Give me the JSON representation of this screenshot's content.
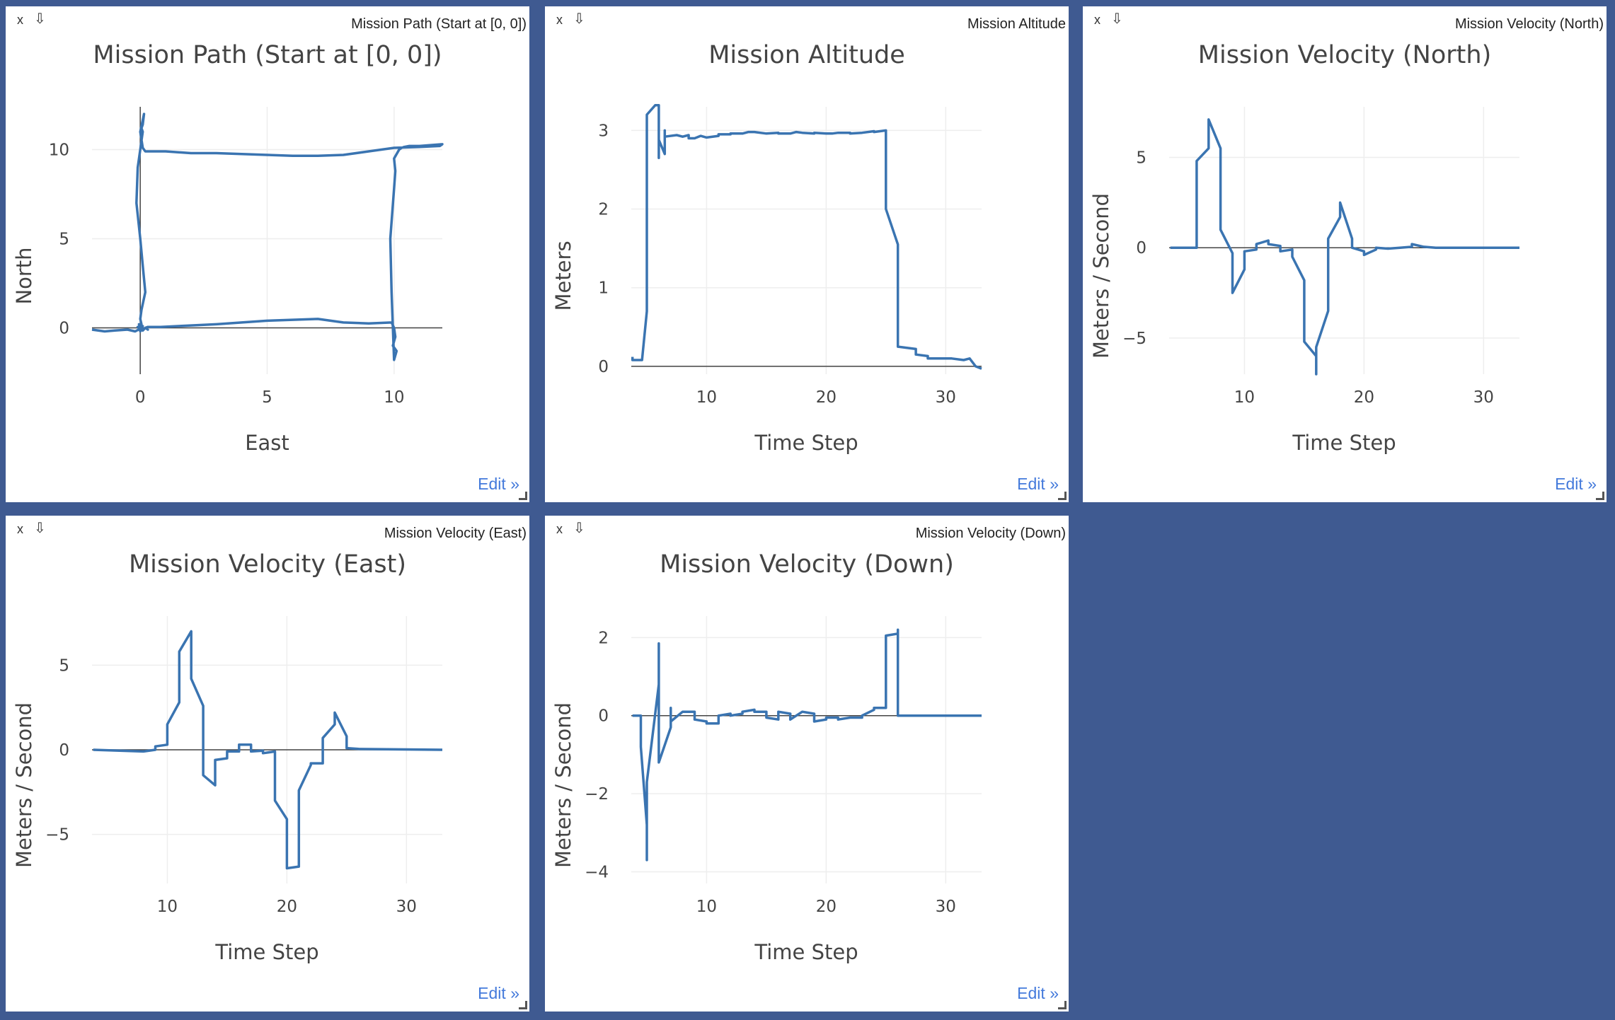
{
  "ui": {
    "close_label": "x",
    "popout_label": "⇩",
    "edit_label": "Edit »",
    "line_color": "#3a74b1",
    "grid_color": "#eeeeee",
    "zero_color": "#444444",
    "background": "#3f5a91"
  },
  "panels": [
    {
      "label": "Mission Path (Start at [0, 0])"
    },
    {
      "label": "Mission Altitude"
    },
    {
      "label": "Mission Velocity (North)"
    },
    {
      "label": "Mission Velocity (East)"
    },
    {
      "label": "Mission Velocity (Down)"
    }
  ],
  "chart_data": [
    {
      "type": "line",
      "title": "Mission Path (Start at [0, 0])",
      "xlabel": "East",
      "ylabel": "North",
      "xlim": [
        -1.9,
        11.9
      ],
      "ylim": [
        -2.6,
        12.4
      ],
      "xticks": [
        0,
        5,
        10
      ],
      "yticks": [
        0,
        5,
        10
      ],
      "grid": true,
      "zero_lines": {
        "x": true,
        "y": true
      },
      "series": [
        {
          "x": [
            -1.9,
            -1.4,
            -1.0,
            -0.5,
            -0.2,
            0.0,
            0.1,
            0.2,
            0.3,
            0.2,
            0.3,
            0.8,
            1.5,
            3.0,
            4.0,
            5.0,
            6.0,
            7.0,
            8.0,
            9.0,
            9.9,
            10.0,
            10.05,
            9.95,
            10.1,
            10.0,
            9.9,
            9.85,
            10.0,
            10.05,
            10.0,
            10.2,
            10.3,
            10.4,
            10.6,
            11.0,
            11.9,
            11.8,
            11.0,
            10.0,
            9.0,
            8.0,
            7.0,
            6.0,
            5.0,
            4.0,
            3.0,
            2.0,
            1.0,
            0.2,
            0.1,
            0.0,
            0.15,
            0.1,
            0.05,
            0.1,
            0.05,
            0.0,
            -0.1,
            -0.15,
            0.0,
            0.1,
            0.2,
            0.05,
            0.0,
            0.05,
            -0.05,
            0.05,
            0.1,
            0.0,
            -0.05,
            0.05,
            0.1,
            0.0,
            -0.1,
            0.05
          ],
          "y": [
            -0.1,
            -0.2,
            -0.15,
            -0.1,
            -0.2,
            -0.05,
            -0.15,
            0.0,
            -0.1,
            0.0,
            0.05,
            0.05,
            0.1,
            0.2,
            0.3,
            0.4,
            0.45,
            0.5,
            0.3,
            0.25,
            0.3,
            0.0,
            -0.5,
            -1.0,
            -1.3,
            -1.8,
            2.0,
            5.0,
            7.8,
            8.8,
            9.5,
            10.0,
            10.1,
            10.15,
            10.2,
            10.2,
            10.3,
            10.2,
            10.15,
            10.1,
            9.9,
            9.7,
            9.65,
            9.65,
            9.7,
            9.75,
            9.8,
            9.8,
            9.9,
            9.9,
            10.1,
            11.0,
            12.0,
            11.4,
            11.2,
            11.0,
            10.5,
            10.0,
            9.0,
            7.0,
            5.0,
            3.5,
            2.0,
            1.0,
            0.5,
            0.2,
            0.0,
            -0.1,
            0.1,
            -0.2,
            0.2,
            0.0,
            0.1,
            -0.1,
            0.05,
            0.0
          ]
        }
      ]
    },
    {
      "type": "line",
      "title": "Mission Altitude",
      "xlabel": "Time Step",
      "ylabel": "Meters",
      "xlim": [
        3.7,
        33
      ],
      "ylim": [
        -0.1,
        3.3
      ],
      "xticks": [
        10,
        20,
        30
      ],
      "yticks": [
        0,
        1,
        2,
        3
      ],
      "grid": true,
      "zero_lines": {
        "x": false,
        "y": true
      },
      "series": [
        {
          "x": [
            3.8,
            3.8,
            4.6,
            5.0,
            5.0,
            5.7,
            6.0,
            6.0,
            6.0,
            6.5,
            6.5,
            6.5,
            7.5,
            8.0,
            8.5,
            8.5,
            9.0,
            9.5,
            10.0,
            10.0,
            11.0,
            11.0,
            12.0,
            12.0,
            13.0,
            13.5,
            14.0,
            15.0,
            16.0,
            16.0,
            17.0,
            17.5,
            18.0,
            19.0,
            19.0,
            20.0,
            20.5,
            21.0,
            22.0,
            22.0,
            23.0,
            24.0,
            24.0,
            25.0,
            25.0,
            26.0,
            26.0,
            27.5,
            27.5,
            28.5,
            28.5,
            29.5,
            29.5,
            30.5,
            30.5,
            31.5,
            32.0,
            32.5,
            33.0
          ],
          "y": [
            0.12,
            0.08,
            0.08,
            0.7,
            3.2,
            3.32,
            3.32,
            2.65,
            2.88,
            2.7,
            3.0,
            2.92,
            2.94,
            2.92,
            2.94,
            2.9,
            2.9,
            2.93,
            2.91,
            2.91,
            2.93,
            2.95,
            2.95,
            2.96,
            2.96,
            2.98,
            2.98,
            2.96,
            2.97,
            2.96,
            2.96,
            2.98,
            2.97,
            2.96,
            2.97,
            2.96,
            2.96,
            2.97,
            2.97,
            2.96,
            2.97,
            2.99,
            2.98,
            3.0,
            2.0,
            1.55,
            0.25,
            0.22,
            0.15,
            0.13,
            0.1,
            0.1,
            0.1,
            0.1,
            0.1,
            0.08,
            0.1,
            0.0,
            -0.03
          ]
        }
      ]
    },
    {
      "type": "line",
      "title": "Mission Velocity (North)",
      "xlabel": "Time Step",
      "ylabel": "Meters / Second",
      "xlim": [
        3.7,
        33
      ],
      "ylim": [
        -7.0,
        7.8
      ],
      "xticks": [
        10,
        20,
        30
      ],
      "yticks": [
        -5,
        0,
        5
      ],
      "grid": true,
      "zero_lines": {
        "x": false,
        "y": true
      },
      "series": [
        {
          "x": [
            3.8,
            6.0,
            6.0,
            7.0,
            7.0,
            8.0,
            8.0,
            9.0,
            9.0,
            10.0,
            10.0,
            11.0,
            11.0,
            12.0,
            12.0,
            13.0,
            13.0,
            14.0,
            14.0,
            15.0,
            15.0,
            16.0,
            16.0,
            16.0,
            17.0,
            17.0,
            18.0,
            18.0,
            19.0,
            19.0,
            20.0,
            20.0,
            21.0,
            21.0,
            22.0,
            23.0,
            24.0,
            24.0,
            25.0,
            26.0,
            33.0
          ],
          "y": [
            0,
            0,
            4.8,
            5.5,
            7.1,
            5.5,
            1.0,
            -0.3,
            -2.5,
            -1.2,
            -0.2,
            -0.1,
            0.2,
            0.4,
            0.2,
            0.1,
            -0.2,
            -0.1,
            -0.5,
            -1.8,
            -5.2,
            -6.0,
            -7.0,
            -5.5,
            -3.5,
            0.5,
            1.7,
            2.5,
            0.5,
            0.0,
            -0.2,
            -0.4,
            -0.1,
            0.0,
            -0.05,
            0.0,
            0.05,
            0.2,
            0.05,
            0.0,
            0.0
          ]
        }
      ]
    },
    {
      "type": "line",
      "title": "Mission Velocity (East)",
      "xlabel": "Time Step",
      "ylabel": "Meters / Second",
      "xlim": [
        3.7,
        33
      ],
      "ylim": [
        -7.9,
        7.9
      ],
      "xticks": [
        10,
        20,
        30
      ],
      "yticks": [
        -5,
        0,
        5
      ],
      "grid": true,
      "zero_lines": {
        "x": false,
        "y": true
      },
      "series": [
        {
          "x": [
            3.8,
            8.0,
            9.0,
            9.0,
            10.0,
            10.0,
            11.0,
            11.0,
            12.0,
            12.0,
            13.0,
            13.0,
            14.0,
            14.0,
            15.0,
            15.0,
            16.0,
            16.0,
            17.0,
            17.0,
            18.0,
            18.0,
            19.0,
            19.0,
            20.0,
            20.0,
            21.0,
            21.0,
            22.0,
            22.0,
            23.0,
            23.0,
            24.0,
            24.0,
            25.0,
            25.0,
            26.0,
            33.0
          ],
          "y": [
            0,
            -0.1,
            0.0,
            0.2,
            0.3,
            1.5,
            2.8,
            5.8,
            7.0,
            4.2,
            2.6,
            -1.5,
            -2.1,
            -0.6,
            -0.5,
            -0.1,
            -0.1,
            0.3,
            0.3,
            -0.1,
            -0.05,
            -0.2,
            -0.1,
            -3.0,
            -4.1,
            -7.0,
            -6.9,
            -2.4,
            -0.9,
            -0.8,
            -0.8,
            0.7,
            1.5,
            2.2,
            0.8,
            0.1,
            0.05,
            0.0
          ]
        }
      ]
    },
    {
      "type": "line",
      "title": "Mission Velocity (Down)",
      "xlabel": "Time Step",
      "ylabel": "Meters / Second",
      "xlim": [
        3.7,
        33
      ],
      "ylim": [
        -4.3,
        2.55
      ],
      "xticks": [
        10,
        20,
        30
      ],
      "yticks": [
        -4,
        -2,
        0,
        2
      ],
      "grid": true,
      "zero_lines": {
        "x": false,
        "y": true
      },
      "series": [
        {
          "x": [
            3.8,
            4.5,
            4.5,
            5.0,
            5.0,
            5.0,
            6.0,
            6.0,
            6.0,
            7.0,
            7.0,
            7.0,
            8.0,
            8.0,
            9.0,
            9.0,
            10.0,
            10.0,
            11.0,
            11.0,
            12.0,
            12.0,
            13.0,
            13.0,
            14.0,
            14.0,
            15.0,
            15.0,
            16.0,
            16.0,
            17.0,
            17.0,
            18.0,
            18.0,
            19.0,
            19.0,
            20.0,
            20.0,
            21.0,
            21.0,
            22.0,
            22.0,
            23.0,
            23.0,
            24.0,
            24.0,
            25.0,
            25.0,
            26.0,
            26.0,
            26.0,
            33.0
          ],
          "y": [
            0.0,
            0.0,
            -0.8,
            -2.8,
            -3.7,
            -1.7,
            0.8,
            1.85,
            -1.2,
            -0.3,
            0.2,
            -0.15,
            0.1,
            0.1,
            0.1,
            -0.1,
            -0.15,
            -0.2,
            -0.2,
            0.0,
            0.05,
            0.0,
            0.05,
            0.1,
            0.15,
            0.1,
            0.1,
            -0.05,
            -0.1,
            0.1,
            0.05,
            -0.1,
            0.1,
            0.1,
            0.05,
            -0.15,
            -0.1,
            -0.05,
            -0.05,
            -0.1,
            -0.05,
            -0.05,
            -0.05,
            0.0,
            0.15,
            0.2,
            0.2,
            2.05,
            2.1,
            2.2,
            0.0,
            0.0
          ]
        }
      ]
    }
  ]
}
